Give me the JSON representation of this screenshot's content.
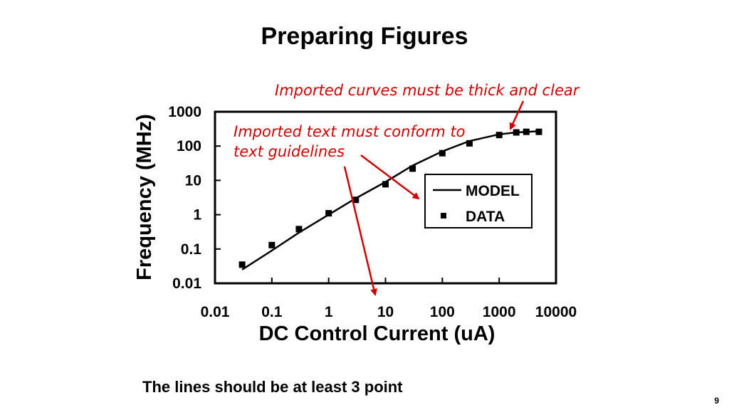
{
  "slide": {
    "title": "Preparing Figures",
    "caption": "The lines should be at least 3 point",
    "page_number": "9"
  },
  "annotations": {
    "curves_note": "Imported curves must be thick and clear",
    "text_note_line1": "Imported text must conform to",
    "text_note_line2": "text guidelines",
    "color": "#cc0000"
  },
  "chart_data": {
    "type": "scatter",
    "xlabel": "DC Control Current (uA)",
    "ylabel": "Frequency (MHz)",
    "x_scale": "log",
    "y_scale": "log",
    "xlim": [
      0.01,
      10000
    ],
    "ylim": [
      0.01,
      1000
    ],
    "x_ticks": [
      "0.01",
      "0.1",
      "1",
      "10",
      "100",
      "1000",
      "10000"
    ],
    "y_ticks": [
      "0.01",
      "0.1",
      "1",
      "10",
      "100",
      "1000"
    ],
    "grid": false,
    "legend_position": "right",
    "series": [
      {
        "name": "MODEL",
        "style": "line",
        "x": [
          0.03,
          0.1,
          0.3,
          1,
          3,
          10,
          30,
          100,
          300,
          1000,
          2000,
          3000,
          5000
        ],
        "y": [
          0.025,
          0.09,
          0.3,
          1.0,
          3.0,
          9.0,
          27,
          70,
          140,
          220,
          250,
          260,
          270
        ]
      },
      {
        "name": "DATA",
        "style": "markers",
        "x": [
          0.03,
          0.1,
          0.3,
          1,
          3,
          10,
          30,
          100,
          300,
          1000,
          2000,
          3000,
          5000
        ],
        "y": [
          0.035,
          0.13,
          0.38,
          1.1,
          2.7,
          7.7,
          22,
          62,
          120,
          210,
          250,
          260,
          260
        ]
      }
    ]
  }
}
